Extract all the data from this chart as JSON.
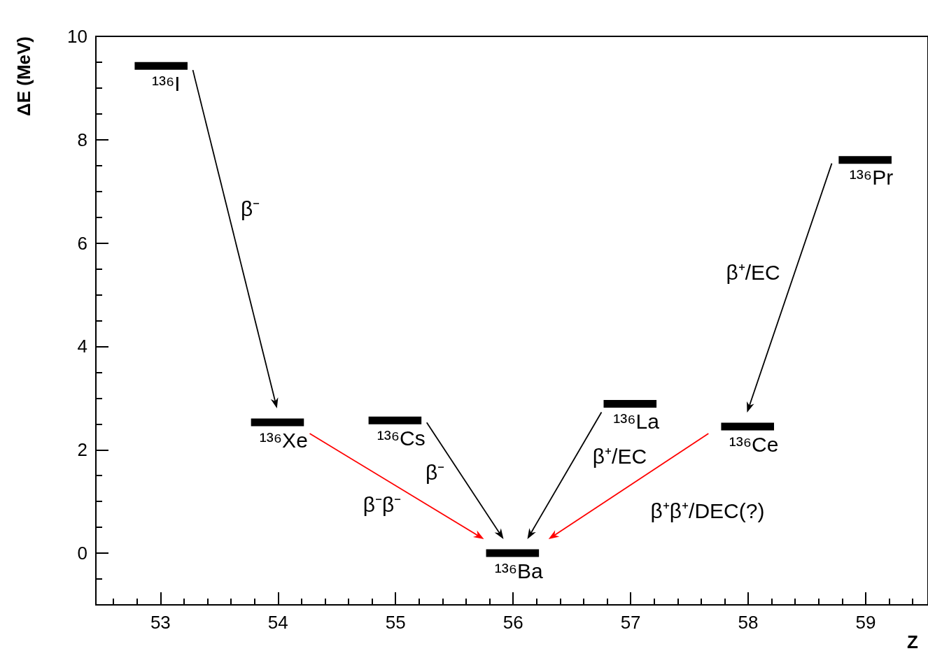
{
  "chart_data": {
    "type": "line",
    "xlabel": "Z",
    "ylabel": "ΔE (MeV)",
    "xlim": [
      52.45,
      59.53
    ],
    "xticks": [
      53,
      54,
      55,
      56,
      57,
      58,
      59
    ],
    "ylim": [
      -1,
      10
    ],
    "yticks": [
      0,
      2,
      4,
      6,
      8,
      10
    ],
    "grid": false,
    "marker": "none",
    "series": [
      {
        "color": "#000000",
        "x": [
          52.78,
          53.23
        ],
        "values": [
          9.43,
          9.43
        ]
      },
      {
        "color": "#000000",
        "x": [
          53.77,
          54.22
        ],
        "values": [
          2.53,
          2.53
        ]
      },
      {
        "color": "#000000",
        "x": [
          54.77,
          55.22
        ],
        "values": [
          2.57,
          2.57
        ]
      },
      {
        "color": "#000000",
        "x": [
          55.77,
          56.22
        ],
        "values": [
          0,
          0
        ]
      },
      {
        "color": "#000000",
        "x": [
          56.77,
          57.22
        ],
        "values": [
          2.89,
          2.89
        ]
      },
      {
        "color": "#000000",
        "x": [
          57.77,
          58.22
        ],
        "values": [
          2.45,
          2.45
        ]
      },
      {
        "color": "#000000",
        "x": [
          58.77,
          59.22
        ],
        "values": [
          7.61,
          7.61
        ]
      }
    ],
    "annotations": [
      "β⁻",
      "β⁻β⁻",
      "β⁻",
      "β⁺/EC",
      "β⁺β⁺/DEC(?)",
      "β⁺/EC",
      {
        "text": "¹³⁶I",
        "x": 53,
        "y": 9.43
      },
      {
        "text": "¹³⁶Xe",
        "x": 54,
        "y": 2.53
      },
      {
        "text": "¹³⁶Cs",
        "x": 55,
        "y": 2.57
      },
      {
        "text": "¹³⁶Ba",
        "x": 56,
        "y": 0
      },
      {
        "text": "¹³⁶La",
        "x": 57,
        "y": 2.89
      },
      {
        "text": "¹³⁶Ce",
        "x": 58,
        "y": 2.45
      },
      {
        "text": "¹³⁶Pr",
        "x": 59,
        "y": 7.61
      }
    ]
  }
}
